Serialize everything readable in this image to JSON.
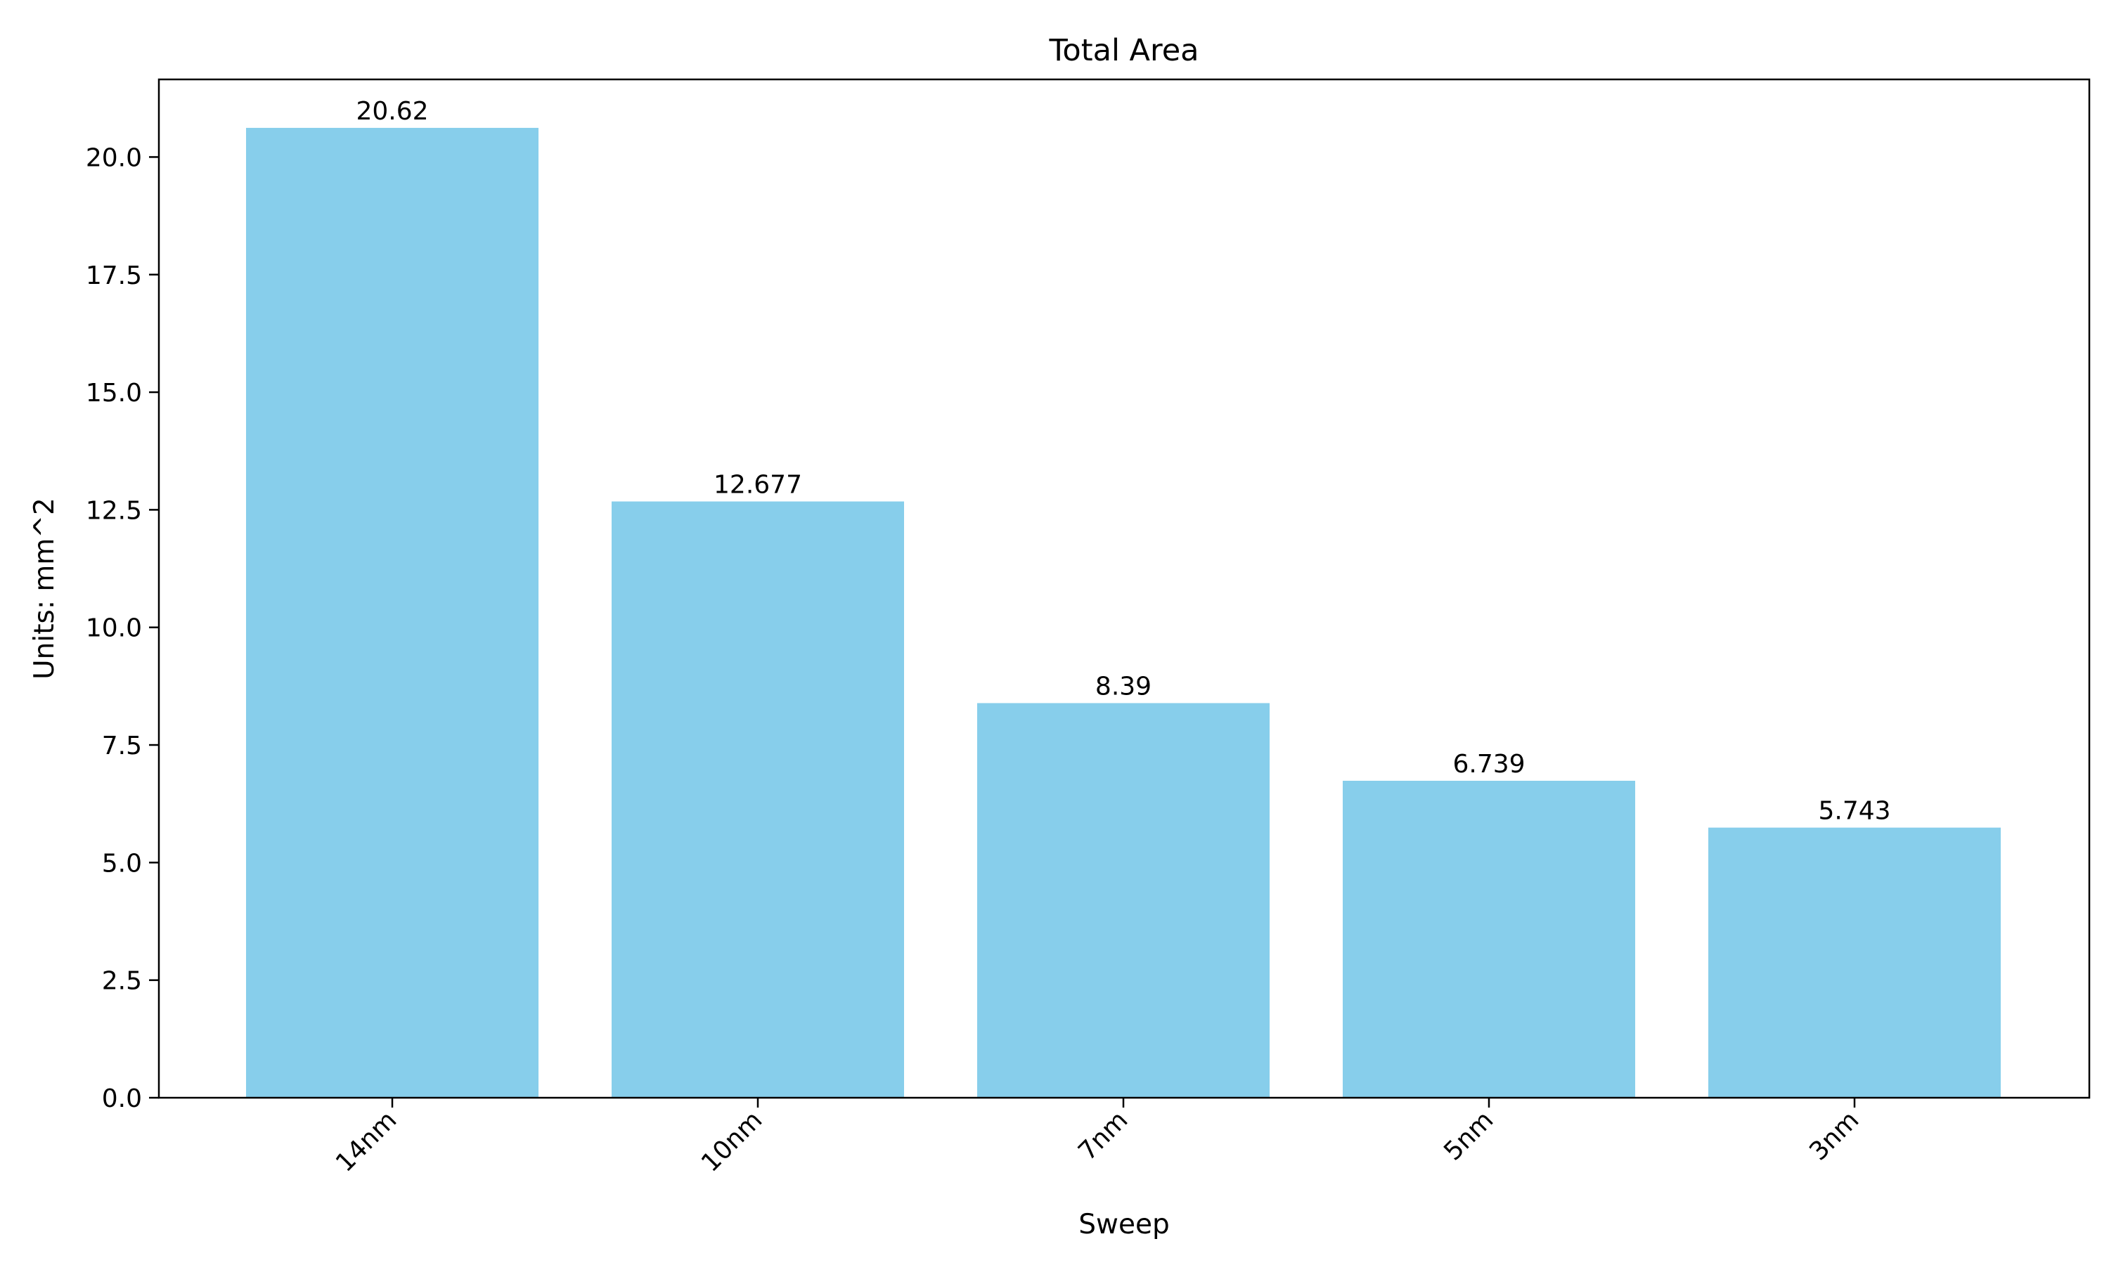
{
  "chart_data": {
    "type": "bar",
    "title": "Total Area",
    "xlabel": "Sweep",
    "ylabel": "Units: mm^2",
    "categories": [
      "14nm",
      "10nm",
      "7nm",
      "5nm",
      "3nm"
    ],
    "values": [
      20.62,
      12.677,
      8.39,
      6.739,
      5.743
    ],
    "value_labels": [
      "20.62",
      "12.677",
      "8.39",
      "6.739",
      "5.743"
    ],
    "ylim": [
      0,
      21.65
    ],
    "yticks": [
      0,
      2.5,
      5,
      7.5,
      10,
      12.5,
      15,
      17.5,
      20
    ],
    "ytick_labels": [
      "0.0",
      "2.5",
      "5.0",
      "7.5",
      "10.0",
      "12.5",
      "15.0",
      "17.5",
      "20.0"
    ],
    "grid": false,
    "legend": false,
    "bar_color": "#87CEEB",
    "axis_color": "#000000"
  }
}
